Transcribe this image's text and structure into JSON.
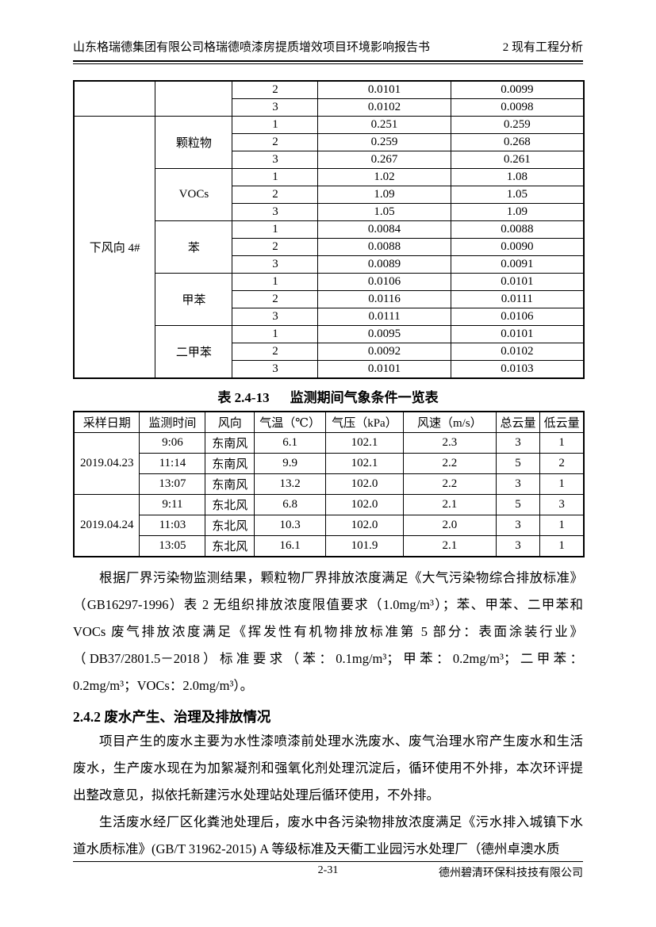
{
  "colors": {
    "text": "#000000",
    "background": "#ffffff",
    "border": "#000000"
  },
  "header": {
    "left": "山东格瑞德集团有限公司格瑞德喷漆房提质增效项目环境影响报告书",
    "right": "2 现有工程分析"
  },
  "monitor_table": {
    "continuation": {
      "left_cell": "",
      "pollutant_cell": "",
      "rows": [
        [
          "2",
          "0.0101",
          "0.0099"
        ],
        [
          "3",
          "0.0102",
          "0.0098"
        ]
      ]
    },
    "location": "下风向 4#",
    "groups": [
      {
        "pollutant": "颗粒物",
        "rows": [
          [
            "1",
            "0.251",
            "0.259"
          ],
          [
            "2",
            "0.259",
            "0.268"
          ],
          [
            "3",
            "0.267",
            "0.261"
          ]
        ]
      },
      {
        "pollutant": "VOCs",
        "rows": [
          [
            "1",
            "1.02",
            "1.08"
          ],
          [
            "2",
            "1.09",
            "1.05"
          ],
          [
            "3",
            "1.05",
            "1.09"
          ]
        ]
      },
      {
        "pollutant": "苯",
        "rows": [
          [
            "1",
            "0.0084",
            "0.0088"
          ],
          [
            "2",
            "0.0088",
            "0.0090"
          ],
          [
            "3",
            "0.0089",
            "0.0091"
          ]
        ]
      },
      {
        "pollutant": "甲苯",
        "rows": [
          [
            "1",
            "0.0106",
            "0.0101"
          ],
          [
            "2",
            "0.0116",
            "0.0111"
          ],
          [
            "3",
            "0.0111",
            "0.0106"
          ]
        ]
      },
      {
        "pollutant": "二甲苯",
        "rows": [
          [
            "1",
            "0.0095",
            "0.0101"
          ],
          [
            "2",
            "0.0092",
            "0.0102"
          ],
          [
            "3",
            "0.0101",
            "0.0103"
          ]
        ]
      }
    ]
  },
  "weather_table": {
    "title_label": "表 2.4-13",
    "title_text": "监测期间气象条件一览表",
    "headers": [
      "采样日期",
      "监测时间",
      "风向",
      "气温（℃）",
      "气压（kPa）",
      "风速（m/s）",
      "总云量",
      "低云量"
    ],
    "groups": [
      {
        "date": "2019.04.23",
        "rows": [
          [
            "9:06",
            "东南风",
            "6.1",
            "102.1",
            "2.3",
            "3",
            "1"
          ],
          [
            "11:14",
            "东南风",
            "9.9",
            "102.1",
            "2.2",
            "5",
            "2"
          ],
          [
            "13:07",
            "东南风",
            "13.2",
            "102.0",
            "2.2",
            "3",
            "1"
          ]
        ]
      },
      {
        "date": "2019.04.24",
        "rows": [
          [
            "9:11",
            "东北风",
            "6.8",
            "102.0",
            "2.1",
            "5",
            "3"
          ],
          [
            "11:03",
            "东北风",
            "10.3",
            "102.0",
            "2.0",
            "3",
            "1"
          ],
          [
            "13:05",
            "东北风",
            "16.1",
            "101.9",
            "2.1",
            "3",
            "1"
          ]
        ]
      }
    ]
  },
  "paragraphs": {
    "p1": "根据厂界污染物监测结果，颗粒物厂界排放浓度满足《大气污染物综合排放标准》（GB16297-1996）表 2 无组织排放浓度限值要求（1.0mg/m³）；苯、甲苯、二甲苯和 VOCs 废气排放浓度满足《挥发性有机物排放标准第 5 部分：表面涂装行业》（DB37/2801.5－2018）标准要求（苯：0.1mg/m³；甲苯：0.2mg/m³；二甲苯：0.2mg/m³；VOCs：2.0mg/m³）。",
    "p2": "项目产生的废水主要为水性漆喷漆前处理水洗废水、废气治理水帘产生废水和生活废水，生产废水现在为加絮凝剂和强氧化剂处理沉淀后，循环使用不外排，本次环评提出整改意见，拟依托新建污水处理站处理后循环使用，不外排。",
    "p3": "生活废水经厂区化粪池处理后，废水中各污染物排放浓度满足《污水排入城镇下水道水质标准》(GB/T 31962-2015) A 等级标准及天衢工业园污水处理厂（德州卓澳水质"
  },
  "section": {
    "heading": "2.4.2 废水产生、治理及排放情况"
  },
  "footer": {
    "page": "2-31",
    "company": "德州碧清环保科技技有限公司"
  }
}
